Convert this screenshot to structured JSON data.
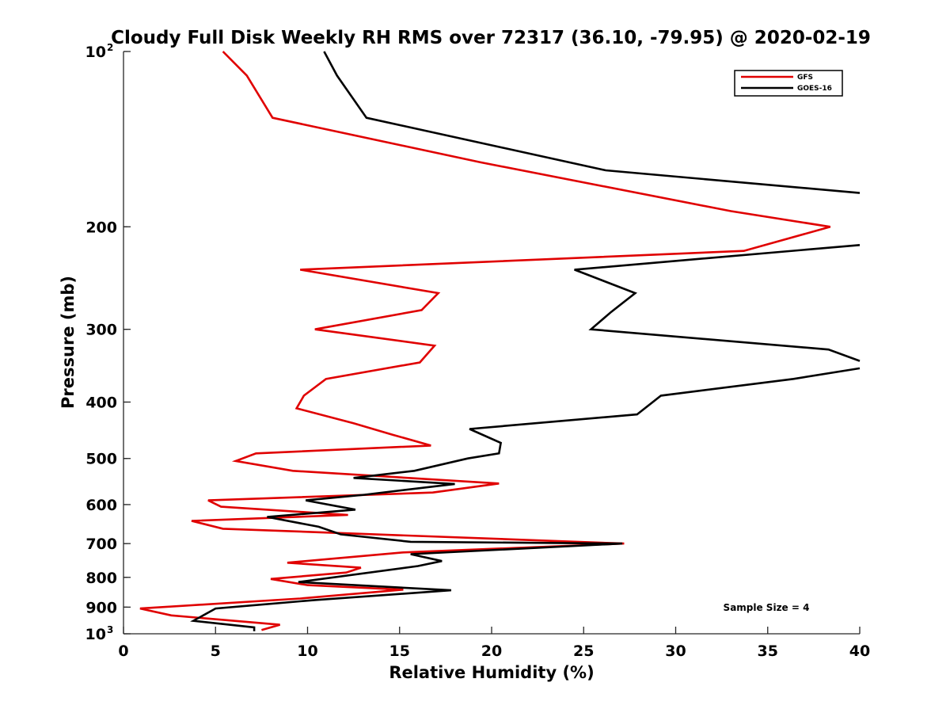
{
  "chart_data": {
    "type": "line",
    "title": "Cloudy Full Disk Weekly RH RMS over 72317 (36.10, -79.95) @ 2020-02-19",
    "xlabel": "Relative Humidity (%)",
    "ylabel": "Pressure (mb)",
    "xlim": [
      0,
      40
    ],
    "ylim": [
      100,
      1000
    ],
    "yscale": "log",
    "y_reversed": true,
    "x_ticks": [
      "0",
      "5",
      "10",
      "15",
      "20",
      "25",
      "30",
      "35",
      "40"
    ],
    "y_ticks": [
      {
        "value": 200,
        "label": "200"
      },
      {
        "value": 300,
        "label": "300"
      },
      {
        "value": 400,
        "label": "400"
      },
      {
        "value": 500,
        "label": "500"
      },
      {
        "value": 600,
        "label": "600"
      },
      {
        "value": 700,
        "label": "700"
      },
      {
        "value": 800,
        "label": "800"
      },
      {
        "value": 900,
        "label": "900"
      }
    ],
    "y_ends": [
      {
        "value": 100,
        "base": "10",
        "exp": "2"
      },
      {
        "value": 1000,
        "base": "10",
        "exp": "3"
      }
    ],
    "legend_position": "top-right",
    "annotation": "Sample Size = 4",
    "series": [
      {
        "name": "GFS",
        "color": "#e00000",
        "x": [
          5.4,
          6.7,
          8.1,
          19.4,
          33.0,
          38.4,
          33.7,
          9.6,
          17.1,
          16.2,
          10.4,
          16.9,
          16.1,
          11.0,
          9.8,
          9.4,
          12.5,
          14.6,
          16.7,
          7.2,
          6.1,
          9.2,
          20.4,
          16.8,
          4.6,
          5.3,
          12.2,
          3.7,
          5.4,
          27.2,
          15.2,
          8.9,
          12.9,
          12.1,
          8.0,
          10.0,
          15.2,
          9.6,
          0.9,
          2.6,
          8.5,
          7.5
        ],
        "y": [
          100,
          110,
          130,
          155,
          188,
          200,
          220,
          237,
          260,
          278,
          300,
          320,
          342,
          365,
          390,
          410,
          435,
          455,
          475,
          490,
          505,
          525,
          552,
          572,
          590,
          605,
          625,
          640,
          660,
          700,
          725,
          755,
          770,
          785,
          805,
          825,
          840,
          870,
          905,
          930,
          965,
          985
        ]
      },
      {
        "name": "GOES-16",
        "color": "#000000",
        "x": [
          10.9,
          11.6,
          13.2,
          26.2,
          40.0,
          null,
          40.0,
          24.5,
          27.8,
          26.5,
          25.4,
          38.3,
          40.0,
          null,
          40.0,
          36.4,
          29.2,
          27.9,
          18.8,
          20.5,
          20.4,
          18.7,
          15.8,
          12.5,
          18.0,
          13.1,
          9.9,
          12.6,
          7.8,
          10.6,
          11.8,
          15.6,
          27.1,
          15.6,
          17.3,
          16.0,
          9.5,
          17.8,
          10.4,
          5.0,
          3.8,
          7.1,
          7.1
        ],
        "y": [
          100,
          110,
          130,
          160,
          175,
          null,
          215,
          237,
          260,
          280,
          300,
          325,
          340,
          null,
          350,
          365,
          390,
          420,
          445,
          470,
          490,
          500,
          525,
          540,
          553,
          577,
          590,
          612,
          630,
          655,
          675,
          695,
          700,
          730,
          750,
          765,
          815,
          842,
          875,
          905,
          950,
          975,
          990
        ]
      }
    ]
  }
}
